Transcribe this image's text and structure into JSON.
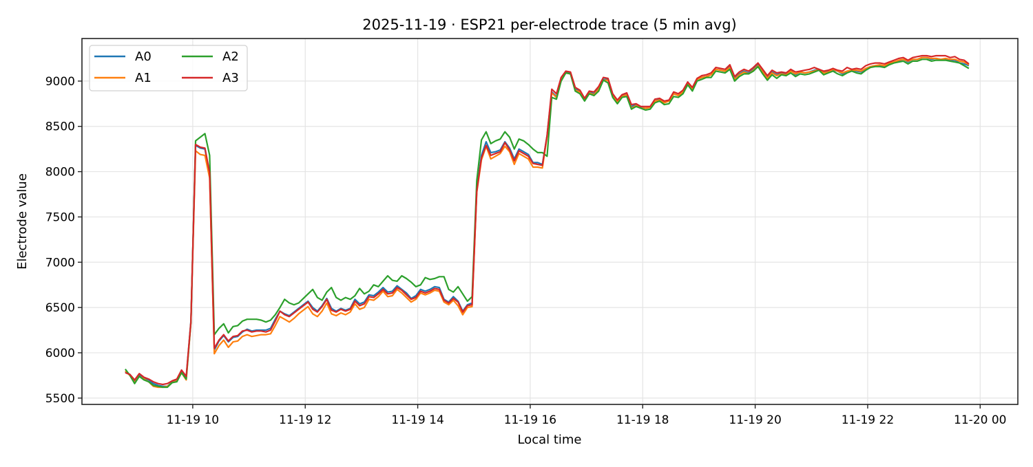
{
  "chart_data": {
    "type": "line",
    "title": "2025-11-19 · ESP21 per-electrode trace (5 min avg)",
    "xlabel": "Local time",
    "ylabel": "Electrode value",
    "ylim": [
      5430,
      9470
    ],
    "yticks": [
      5500,
      6000,
      6500,
      7000,
      7500,
      8000,
      8500,
      9000
    ],
    "xticks": [
      {
        "label": "11-19 10",
        "hour": 10
      },
      {
        "label": "11-19 12",
        "hour": 12
      },
      {
        "label": "11-19 14",
        "hour": 14
      },
      {
        "label": "11-19 16",
        "hour": 16
      },
      {
        "label": "11-19 18",
        "hour": 18
      },
      {
        "label": "11-19 20",
        "hour": 20
      },
      {
        "label": "11-19 22",
        "hour": 22
      },
      {
        "label": "11-20 00",
        "hour": 24
      }
    ],
    "xlim_hours": [
      8.03,
      24.67
    ],
    "grid": true,
    "legend": {
      "position": "upper left",
      "ncol": 2
    },
    "x_start_hour": 8.8,
    "x_step_minutes": 5,
    "series": [
      {
        "name": "A0",
        "color": "#1f77b4",
        "values": [
          5790,
          5760,
          5690,
          5760,
          5720,
          5700,
          5660,
          5640,
          5630,
          5630,
          5680,
          5700,
          5790,
          5730,
          6350,
          8290,
          8260,
          8250,
          7960,
          6030,
          6130,
          6190,
          6120,
          6170,
          6180,
          6230,
          6260,
          6240,
          6250,
          6250,
          6250,
          6270,
          6370,
          6460,
          6430,
          6410,
          6450,
          6490,
          6530,
          6570,
          6500,
          6460,
          6520,
          6600,
          6490,
          6460,
          6490,
          6470,
          6490,
          6590,
          6540,
          6560,
          6640,
          6630,
          6670,
          6720,
          6670,
          6680,
          6740,
          6700,
          6660,
          6600,
          6630,
          6700,
          6680,
          6700,
          6730,
          6720,
          6590,
          6560,
          6620,
          6570,
          6460,
          6530,
          6550,
          7800,
          8180,
          8330,
          8210,
          8220,
          8240,
          8330,
          8260,
          8140,
          8250,
          8220,
          8190,
          8100,
          8100,
          8080,
          8400,
          8880,
          8830,
          9020,
          9100,
          9090,
          8910,
          8890,
          8800,
          8880,
          8860,
          8920,
          9020,
          9020,
          8840,
          8780,
          8840,
          8860,
          8720,
          8740,
          8710,
          8700,
          8710,
          8780,
          8800,
          8760,
          8780,
          8860,
          8840,
          8880,
          8980,
          8910,
          9020,
          9040,
          9050,
          9070,
          9130,
          9120,
          9110,
          9160,
          9030,
          9080,
          9110,
          9090,
          9130,
          9180,
          9110,
          9040,
          9100,
          9070,
          9090,
          9080,
          9120,
          9070,
          9100,
          9090,
          9100,
          9120,
          9130,
          9100,
          9110,
          9120,
          9110,
          9080,
          9110,
          9120,
          9110,
          9100,
          9130,
          9160,
          9170,
          9170,
          9160,
          9190,
          9210,
          9220,
          9240,
          9210,
          9240,
          9240,
          9260,
          9260,
          9240,
          9250,
          9240,
          9240,
          9230,
          9230,
          9200,
          9190,
          9170
        ]
      },
      {
        "name": "A1",
        "color": "#ff7f0e",
        "values": [
          5800,
          5750,
          5670,
          5740,
          5710,
          5680,
          5630,
          5620,
          5620,
          5630,
          5670,
          5690,
          5780,
          5700,
          6330,
          8230,
          8190,
          8180,
          7930,
          5990,
          6080,
          6140,
          6060,
          6120,
          6130,
          6180,
          6200,
          6180,
          6190,
          6200,
          6200,
          6210,
          6300,
          6400,
          6370,
          6340,
          6380,
          6430,
          6470,
          6510,
          6430,
          6400,
          6460,
          6550,
          6430,
          6410,
          6440,
          6420,
          6450,
          6540,
          6480,
          6500,
          6590,
          6580,
          6620,
          6680,
          6620,
          6630,
          6700,
          6660,
          6610,
          6560,
          6590,
          6660,
          6640,
          6660,
          6690,
          6680,
          6560,
          6530,
          6580,
          6520,
          6420,
          6500,
          6510,
          7770,
          8130,
          8280,
          8140,
          8170,
          8200,
          8280,
          8220,
          8080,
          8200,
          8170,
          8140,
          8050,
          8050,
          8040,
          8390,
          8870,
          8820,
          9010,
          9090,
          9080,
          8900,
          8880,
          8790,
          8870,
          8850,
          8910,
          9010,
          9010,
          8830,
          8770,
          8830,
          8850,
          8700,
          8730,
          8700,
          8700,
          8710,
          8780,
          8790,
          8760,
          8780,
          8860,
          8840,
          8880,
          8980,
          8910,
          9020,
          9040,
          9050,
          9070,
          9130,
          9120,
          9110,
          9150,
          9020,
          9070,
          9100,
          9080,
          9120,
          9170,
          9100,
          9030,
          9090,
          9060,
          9080,
          9070,
          9110,
          9080,
          9100,
          9090,
          9100,
          9110,
          9130,
          9090,
          9100,
          9130,
          9110,
          9090,
          9110,
          9120,
          9120,
          9110,
          9140,
          9160,
          9170,
          9180,
          9170,
          9200,
          9210,
          9230,
          9240,
          9220,
          9240,
          9240,
          9260,
          9260,
          9250,
          9250,
          9240,
          9250,
          9240,
          9240,
          9220,
          9210,
          9180
        ]
      },
      {
        "name": "A2",
        "color": "#2ca02c",
        "values": [
          5820,
          5750,
          5660,
          5740,
          5700,
          5680,
          5640,
          5630,
          5620,
          5620,
          5670,
          5680,
          5780,
          5710,
          6330,
          8340,
          8380,
          8420,
          8180,
          6200,
          6270,
          6320,
          6220,
          6290,
          6300,
          6350,
          6370,
          6370,
          6370,
          6360,
          6340,
          6360,
          6420,
          6500,
          6590,
          6550,
          6530,
          6550,
          6600,
          6650,
          6700,
          6610,
          6580,
          6670,
          6720,
          6610,
          6580,
          6610,
          6590,
          6630,
          6710,
          6650,
          6680,
          6750,
          6730,
          6790,
          6850,
          6800,
          6790,
          6850,
          6820,
          6780,
          6730,
          6750,
          6830,
          6810,
          6820,
          6840,
          6840,
          6700,
          6670,
          6730,
          6650,
          6570,
          6620,
          7900,
          8350,
          8440,
          8310,
          8340,
          8360,
          8440,
          8380,
          8250,
          8360,
          8340,
          8300,
          8250,
          8210,
          8210,
          8170,
          8820,
          8800,
          9000,
          9090,
          9080,
          8890,
          8860,
          8780,
          8860,
          8840,
          8890,
          9010,
          8980,
          8820,
          8750,
          8820,
          8830,
          8690,
          8720,
          8700,
          8680,
          8690,
          8760,
          8780,
          8740,
          8750,
          8830,
          8820,
          8860,
          8960,
          8890,
          9000,
          9020,
          9040,
          9040,
          9110,
          9100,
          9090,
          9130,
          9000,
          9050,
          9080,
          9080,
          9110,
          9160,
          9080,
          9010,
          9070,
          9030,
          9070,
          9060,
          9090,
          9050,
          9080,
          9070,
          9080,
          9100,
          9120,
          9070,
          9090,
          9110,
          9080,
          9060,
          9090,
          9110,
          9090,
          9080,
          9120,
          9150,
          9160,
          9160,
          9150,
          9180,
          9200,
          9210,
          9220,
          9190,
          9220,
          9220,
          9240,
          9240,
          9220,
          9230,
          9230,
          9230,
          9220,
          9210,
          9200,
          9170,
          9140
        ]
      },
      {
        "name": "A3",
        "color": "#d62728",
        "values": [
          5780,
          5760,
          5700,
          5770,
          5730,
          5710,
          5680,
          5660,
          5650,
          5660,
          5690,
          5710,
          5810,
          5740,
          6340,
          8300,
          8270,
          8260,
          7990,
          6050,
          6140,
          6200,
          6130,
          6180,
          6190,
          6240,
          6250,
          6230,
          6240,
          6240,
          6230,
          6250,
          6350,
          6460,
          6420,
          6400,
          6440,
          6480,
          6520,
          6560,
          6480,
          6450,
          6510,
          6590,
          6470,
          6450,
          6480,
          6460,
          6480,
          6570,
          6520,
          6540,
          6620,
          6610,
          6650,
          6700,
          6650,
          6660,
          6720,
          6690,
          6640,
          6590,
          6610,
          6680,
          6660,
          6680,
          6710,
          6700,
          6580,
          6550,
          6600,
          6560,
          6450,
          6520,
          6530,
          7780,
          8150,
          8290,
          8180,
          8200,
          8220,
          8320,
          8240,
          8120,
          8230,
          8200,
          8170,
          8090,
          8080,
          8070,
          8400,
          8910,
          8860,
          9040,
          9110,
          9100,
          8930,
          8900,
          8810,
          8890,
          8880,
          8940,
          9040,
          9030,
          8860,
          8790,
          8850,
          8870,
          8740,
          8750,
          8720,
          8720,
          8720,
          8800,
          8810,
          8780,
          8790,
          8880,
          8860,
          8900,
          8990,
          8930,
          9030,
          9060,
          9070,
          9090,
          9150,
          9140,
          9130,
          9180,
          9050,
          9100,
          9130,
          9110,
          9150,
          9200,
          9130,
          9060,
          9120,
          9090,
          9100,
          9090,
          9130,
          9100,
          9110,
          9120,
          9130,
          9150,
          9130,
          9110,
          9120,
          9140,
          9120,
          9110,
          9150,
          9130,
          9140,
          9130,
          9170,
          9190,
          9200,
          9200,
          9190,
          9210,
          9230,
          9250,
          9260,
          9230,
          9260,
          9270,
          9280,
          9280,
          9270,
          9280,
          9280,
          9280,
          9260,
          9270,
          9240,
          9230,
          9190
        ]
      }
    ]
  }
}
